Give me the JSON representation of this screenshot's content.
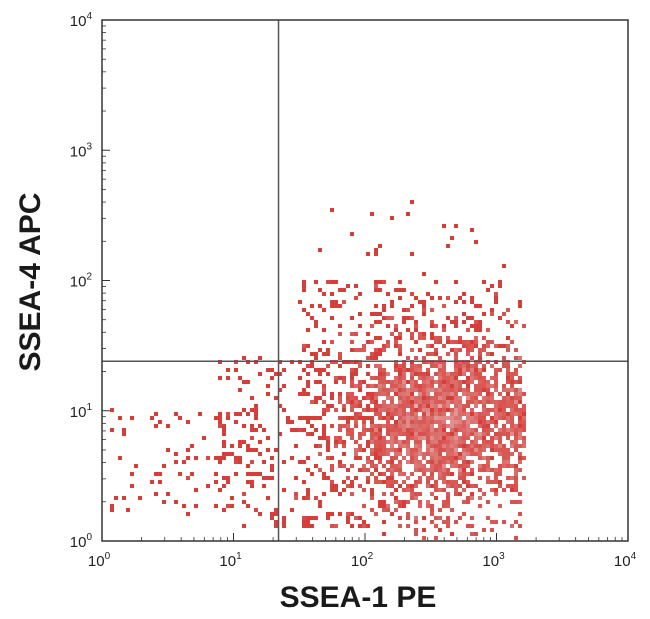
{
  "chart_data": {
    "type": "scatter",
    "title": "",
    "xlabel": "SSEA-1 PE",
    "ylabel": "SSEA-4 APC",
    "x_scale": "log",
    "y_scale": "log",
    "xlim": [
      1,
      10000
    ],
    "ylim": [
      1,
      10000
    ],
    "x_ticks": [
      {
        "base": "10",
        "exp": "0"
      },
      {
        "base": "10",
        "exp": "1"
      },
      {
        "base": "10",
        "exp": "2"
      },
      {
        "base": "10",
        "exp": "3"
      },
      {
        "base": "10",
        "exp": "4"
      }
    ],
    "y_ticks": [
      {
        "base": "10",
        "exp": "0"
      },
      {
        "base": "10",
        "exp": "1"
      },
      {
        "base": "10",
        "exp": "2"
      },
      {
        "base": "10",
        "exp": "3"
      },
      {
        "base": "10",
        "exp": "4"
      }
    ],
    "quadrant_gates": {
      "x": 22,
      "y": 24
    },
    "grid": false,
    "legend": "none",
    "colors": {
      "low_density": "#d42a22",
      "high_density": "#e2b0b2",
      "gate_line": "#555555",
      "frame": "#333333"
    },
    "population": {
      "main_cluster": {
        "x_center": 380,
        "y_center": 8,
        "x_spread_decades": 0.36,
        "y_spread_decades": 0.33,
        "events": 6500
      },
      "tail_events": 600
    }
  }
}
